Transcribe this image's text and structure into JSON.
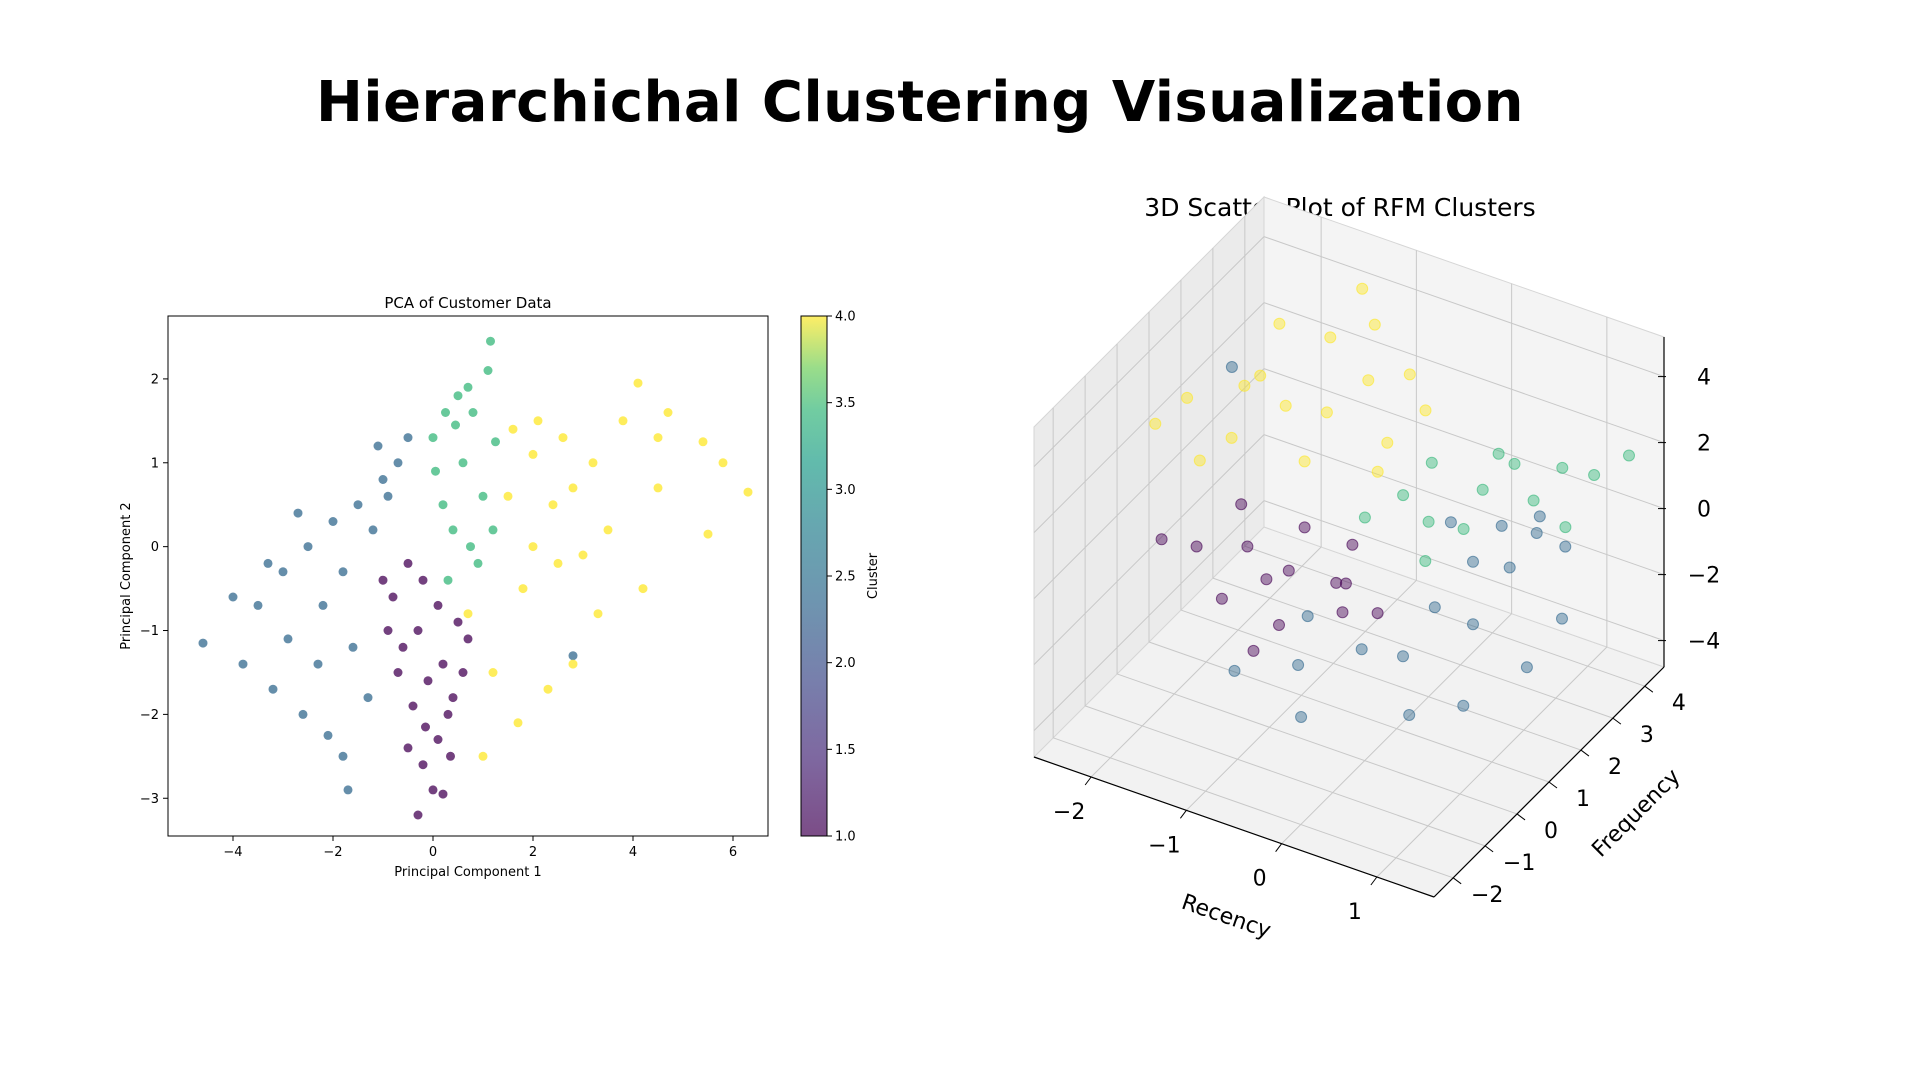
{
  "page": {
    "title": "Hierarchichal Clustering Visualization"
  },
  "chart_data": [
    {
      "type": "scatter",
      "title": "PCA of Customer Data",
      "xlabel": "Principal Component 1",
      "ylabel": "Principal Component 2",
      "xlim": [
        -5.3,
        6.7
      ],
      "ylim": [
        -3.45,
        2.75
      ],
      "xticks": [
        -4,
        -2,
        0,
        2,
        4,
        6
      ],
      "yticks": [
        -3,
        -2,
        -1,
        0,
        1,
        2
      ],
      "grid": false,
      "colorbar": {
        "label": "Cluster",
        "range": [
          1.0,
          4.0
        ],
        "ticks": [
          "1.0",
          "1.5",
          "2.0",
          "2.5",
          "3.0",
          "3.5",
          "4.0"
        ],
        "colormap": "viridis"
      },
      "series": [
        {
          "cluster": 1,
          "color": "#440154",
          "points": [
            [
              -0.5,
              -0.2
            ],
            [
              -0.2,
              -0.4
            ],
            [
              -0.8,
              -0.6
            ],
            [
              0.1,
              -0.7
            ],
            [
              -0.3,
              -1.0
            ],
            [
              -0.6,
              -1.2
            ],
            [
              0.2,
              -1.4
            ],
            [
              -0.1,
              -1.6
            ],
            [
              -0.4,
              -1.9
            ],
            [
              0.3,
              -2.0
            ],
            [
              0.1,
              -2.3
            ],
            [
              -0.2,
              -2.6
            ],
            [
              0.0,
              -2.9
            ],
            [
              -0.3,
              -3.2
            ],
            [
              0.2,
              -2.95
            ],
            [
              -0.5,
              -2.4
            ],
            [
              0.4,
              -1.8
            ],
            [
              0.6,
              -1.5
            ],
            [
              -0.9,
              -1.0
            ],
            [
              -1.0,
              -0.4
            ],
            [
              0.5,
              -0.9
            ],
            [
              0.7,
              -1.1
            ],
            [
              -0.7,
              -1.5
            ],
            [
              0.35,
              -2.5
            ],
            [
              -0.15,
              -2.15
            ]
          ]
        },
        {
          "cluster": 2,
          "color": "#31688e",
          "points": [
            [
              -1.5,
              0.5
            ],
            [
              -1.0,
              0.8
            ],
            [
              -2.0,
              0.3
            ],
            [
              -2.5,
              0.0
            ],
            [
              -1.2,
              0.2
            ],
            [
              -1.8,
              -0.3
            ],
            [
              -2.2,
              -0.7
            ],
            [
              -3.0,
              -0.3
            ],
            [
              -3.5,
              -0.7
            ],
            [
              -4.0,
              -0.6
            ],
            [
              -4.6,
              -1.15
            ],
            [
              -3.8,
              -1.4
            ],
            [
              -3.2,
              -1.7
            ],
            [
              -2.6,
              -2.0
            ],
            [
              -1.8,
              -2.5
            ],
            [
              -1.7,
              -2.9
            ],
            [
              -2.1,
              -2.25
            ],
            [
              -1.3,
              -1.8
            ],
            [
              -0.9,
              0.6
            ],
            [
              -0.7,
              1.0
            ],
            [
              -1.1,
              1.2
            ],
            [
              -0.5,
              1.3
            ],
            [
              2.8,
              -1.3
            ],
            [
              -2.9,
              -1.1
            ],
            [
              -2.3,
              -1.4
            ],
            [
              -1.6,
              -1.2
            ],
            [
              -3.3,
              -0.2
            ],
            [
              -2.7,
              0.4
            ]
          ]
        },
        {
          "cluster": 3,
          "color": "#35b779",
          "points": [
            [
              0.2,
              0.5
            ],
            [
              0.6,
              1.0
            ],
            [
              0.0,
              1.3
            ],
            [
              0.8,
              1.6
            ],
            [
              0.4,
              0.2
            ],
            [
              0.9,
              -0.2
            ],
            [
              0.3,
              -0.4
            ],
            [
              1.0,
              0.6
            ],
            [
              0.5,
              1.8
            ],
            [
              0.7,
              1.9
            ],
            [
              1.1,
              2.1
            ],
            [
              1.15,
              2.45
            ],
            [
              0.25,
              1.6
            ],
            [
              0.05,
              0.9
            ],
            [
              1.2,
              0.2
            ],
            [
              0.75,
              0.0
            ],
            [
              1.25,
              1.25
            ],
            [
              0.45,
              1.45
            ]
          ]
        },
        {
          "cluster": 4,
          "color": "#fde725",
          "points": [
            [
              1.6,
              1.4
            ],
            [
              2.0,
              1.1
            ],
            [
              1.5,
              0.6
            ],
            [
              2.4,
              0.5
            ],
            [
              2.0,
              0.0
            ],
            [
              2.8,
              0.7
            ],
            [
              3.2,
              1.0
            ],
            [
              3.8,
              1.5
            ],
            [
              4.1,
              1.95
            ],
            [
              4.7,
              1.6
            ],
            [
              5.4,
              1.25
            ],
            [
              5.8,
              1.0
            ],
            [
              6.3,
              0.65
            ],
            [
              5.5,
              0.15
            ],
            [
              4.5,
              0.7
            ],
            [
              3.5,
              0.2
            ],
            [
              4.2,
              -0.5
            ],
            [
              3.3,
              -0.8
            ],
            [
              2.8,
              -1.4
            ],
            [
              2.3,
              -1.7
            ],
            [
              1.7,
              -2.1
            ],
            [
              1.0,
              -2.5
            ],
            [
              1.2,
              -1.5
            ],
            [
              0.7,
              -0.8
            ],
            [
              1.8,
              -0.5
            ],
            [
              2.5,
              -0.2
            ],
            [
              3.0,
              -0.1
            ],
            [
              4.5,
              1.3
            ],
            [
              2.1,
              1.5
            ],
            [
              2.6,
              1.3
            ]
          ]
        }
      ]
    },
    {
      "type": "scatter",
      "title": "3D Scatter Plot of RFM Clusters",
      "xlabel": "Recency",
      "ylabel": "Frequency",
      "zlabel": "",
      "xlim": [
        -2.6,
        1.6
      ],
      "ylim": [
        -2.6,
        4.6
      ],
      "zlim": [
        -4.8,
        5.2
      ],
      "xticks": [
        -2,
        -1,
        0,
        1
      ],
      "yticks": [
        -2,
        -1,
        0,
        1,
        2,
        3,
        4
      ],
      "zticks": [
        -4,
        -2,
        0,
        2,
        4
      ],
      "grid": true,
      "series": [
        {
          "cluster": 1,
          "color": "#440154",
          "points": [
            [
              -1.2,
              0.5,
              -1.0
            ],
            [
              -0.9,
              0.0,
              -1.6
            ],
            [
              -1.5,
              0.8,
              -0.6
            ],
            [
              -0.6,
              1.2,
              -1.2
            ],
            [
              -0.3,
              0.2,
              -0.8
            ],
            [
              -1.8,
              1.5,
              -0.3
            ],
            [
              -2.1,
              1.0,
              -1.4
            ],
            [
              -1.0,
              -0.5,
              -2.0
            ],
            [
              -0.5,
              0.6,
              -0.5
            ],
            [
              -1.4,
              1.8,
              -2.2
            ],
            [
              -0.8,
              2.0,
              -1.0
            ],
            [
              -1.6,
              0.3,
              -1.8
            ],
            [
              -2.3,
              0.5,
              -0.9
            ],
            [
              -0.2,
              1.0,
              -1.5
            ],
            [
              -1.1,
              1.4,
              -0.2
            ]
          ]
        },
        {
          "cluster": 2,
          "color": "#31688e",
          "points": [
            [
              0.6,
              2.5,
              0.5
            ],
            [
              0.8,
              3.0,
              0.0
            ],
            [
              0.4,
              2.2,
              -0.5
            ],
            [
              0.9,
              2.8,
              0.8
            ],
            [
              0.2,
              1.6,
              -1.5
            ],
            [
              -0.3,
              0.8,
              -2.5
            ],
            [
              -0.8,
              0.3,
              -3.0
            ],
            [
              0.0,
              1.2,
              -2.8
            ],
            [
              0.5,
              1.9,
              -2.0
            ],
            [
              1.0,
              3.3,
              -0.5
            ],
            [
              1.2,
              2.6,
              -1.8
            ],
            [
              -0.5,
              -0.5,
              -3.5
            ],
            [
              0.3,
              0.5,
              -3.6
            ],
            [
              -1.3,
              -0.2,
              -3.2
            ],
            [
              0.7,
              1.0,
              -3.4
            ],
            [
              1.1,
              1.8,
              -2.6
            ],
            [
              -2.4,
              3.0,
              1.8
            ],
            [
              0.1,
              2.4,
              0.2
            ],
            [
              0.55,
              2.9,
              -1.2
            ],
            [
              -0.9,
              0.9,
              -2.2
            ]
          ]
        },
        {
          "cluster": 3,
          "color": "#35b779",
          "points": [
            [
              0.0,
              2.0,
              0.5
            ],
            [
              0.3,
              2.8,
              1.0
            ],
            [
              -0.2,
              1.8,
              1.3
            ],
            [
              0.5,
              3.2,
              1.6
            ],
            [
              0.8,
              3.8,
              1.2
            ],
            [
              0.2,
              2.5,
              0.0
            ],
            [
              0.6,
              3.5,
              0.3
            ],
            [
              1.0,
              4.2,
              0.8
            ],
            [
              -0.4,
              1.2,
              1.0
            ],
            [
              0.4,
              3.0,
              2.0
            ],
            [
              1.3,
              4.4,
              1.5
            ],
            [
              0.1,
              1.6,
              -0.2
            ],
            [
              0.9,
              3.6,
              -0.3
            ],
            [
              -0.1,
              2.4,
              1.8
            ]
          ]
        },
        {
          "cluster": 4,
          "color": "#fde725",
          "points": [
            [
              -1.5,
              2.0,
              2.5
            ],
            [
              -1.0,
              1.8,
              3.0
            ],
            [
              -1.8,
              1.2,
              2.0
            ],
            [
              -0.8,
              2.5,
              3.5
            ],
            [
              -1.3,
              2.8,
              4.0
            ],
            [
              -0.5,
              2.2,
              2.2
            ],
            [
              -2.0,
              0.8,
              1.5
            ],
            [
              -1.6,
              1.5,
              3.8
            ],
            [
              -0.9,
              3.0,
              4.6
            ],
            [
              -1.2,
              3.5,
              4.9
            ],
            [
              -2.2,
              1.0,
              3.0
            ],
            [
              -0.3,
              2.8,
              2.8
            ],
            [
              -1.7,
              2.4,
              4.4
            ],
            [
              -0.6,
              3.2,
              3.2
            ],
            [
              -1.9,
              1.9,
              2.8
            ],
            [
              -1.1,
              1.4,
              1.8
            ],
            [
              -2.4,
              0.6,
              2.4
            ],
            [
              -0.4,
              1.6,
              2.0
            ]
          ]
        }
      ]
    }
  ]
}
